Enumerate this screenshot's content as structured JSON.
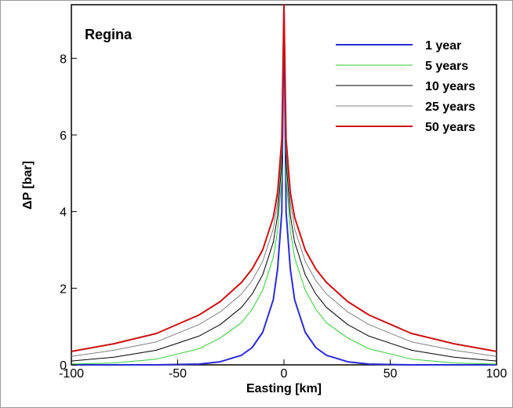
{
  "chart_data": {
    "type": "line",
    "annotation": "Regina",
    "xlabel": "Easting [km]",
    "ylabel": "ΔP [bar]",
    "xlim": [
      -100,
      100
    ],
    "ylim": [
      0,
      9.4
    ],
    "xticks": [
      -100,
      -50,
      0,
      50,
      100
    ],
    "yticks": [
      0,
      2,
      4,
      6,
      8
    ],
    "grid": false,
    "legend_position": "top-right",
    "series": [
      {
        "name": "1 year",
        "color": "#2b2bd6",
        "x": [
          -100,
          -60,
          -40,
          -30,
          -20,
          -15,
          -10,
          -5,
          -3,
          -1,
          0,
          1,
          3,
          5,
          10,
          15,
          20,
          30,
          40,
          60,
          100
        ],
        "y": [
          0,
          0,
          0.02,
          0.08,
          0.25,
          0.45,
          0.85,
          1.7,
          2.5,
          4.0,
          9.4,
          4.0,
          2.5,
          1.7,
          0.85,
          0.45,
          0.25,
          0.08,
          0.02,
          0,
          0
        ]
      },
      {
        "name": "5 years",
        "color": "#33cc33",
        "x": [
          -100,
          -80,
          -60,
          -40,
          -30,
          -20,
          -15,
          -10,
          -5,
          -3,
          -1,
          0,
          1,
          3,
          5,
          10,
          15,
          20,
          30,
          40,
          60,
          80,
          100
        ],
        "y": [
          0.02,
          0.05,
          0.15,
          0.42,
          0.7,
          1.1,
          1.45,
          1.95,
          2.8,
          3.5,
          4.9,
          9.4,
          4.9,
          3.5,
          2.8,
          1.95,
          1.45,
          1.1,
          0.7,
          0.42,
          0.15,
          0.05,
          0.02
        ]
      },
      {
        "name": "10 years",
        "color": "#000000",
        "x": [
          -100,
          -80,
          -60,
          -40,
          -30,
          -20,
          -15,
          -10,
          -5,
          -3,
          -1,
          0,
          1,
          3,
          5,
          10,
          15,
          20,
          30,
          40,
          60,
          80,
          100
        ],
        "y": [
          0.1,
          0.2,
          0.38,
          0.75,
          1.05,
          1.5,
          1.85,
          2.35,
          3.2,
          3.9,
          5.3,
          9.4,
          5.3,
          3.9,
          3.2,
          2.35,
          1.85,
          1.5,
          1.05,
          0.75,
          0.38,
          0.2,
          0.1
        ]
      },
      {
        "name": "25 years",
        "color": "#808080",
        "x": [
          -100,
          -80,
          -60,
          -40,
          -30,
          -20,
          -15,
          -10,
          -5,
          -3,
          -1,
          0,
          1,
          3,
          5,
          10,
          15,
          20,
          30,
          40,
          60,
          80,
          100
        ],
        "y": [
          0.22,
          0.38,
          0.6,
          1.05,
          1.38,
          1.85,
          2.2,
          2.7,
          3.55,
          4.25,
          5.6,
          9.4,
          5.6,
          4.25,
          3.55,
          2.7,
          2.2,
          1.85,
          1.38,
          1.05,
          0.6,
          0.38,
          0.22
        ]
      },
      {
        "name": "50 years",
        "color": "#cc1111",
        "x": [
          -100,
          -80,
          -60,
          -40,
          -30,
          -20,
          -15,
          -10,
          -5,
          -3,
          -1,
          0,
          1,
          3,
          5,
          10,
          15,
          20,
          30,
          40,
          60,
          80,
          100
        ],
        "y": [
          0.35,
          0.55,
          0.82,
          1.3,
          1.65,
          2.15,
          2.5,
          3.0,
          3.85,
          4.5,
          5.9,
          9.4,
          5.9,
          4.5,
          3.85,
          3.0,
          2.5,
          2.15,
          1.65,
          1.3,
          0.82,
          0.55,
          0.35
        ]
      }
    ]
  }
}
